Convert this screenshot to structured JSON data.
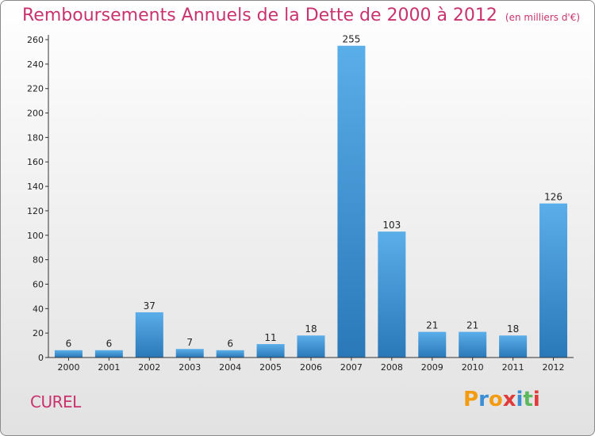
{
  "header": {
    "title": "Remboursements Annuels de la Dette de 2000 à 2012",
    "subtitle": "(en milliers d'€)"
  },
  "footer": {
    "commune": "CUREL",
    "logo_letters": [
      "P",
      "r",
      "o",
      "x",
      "i",
      "t",
      "i"
    ],
    "logo_colors": [
      "#f39c12",
      "#3a8fd4",
      "#f39c12",
      "#e03a3a",
      "#3a8fd4",
      "#5cb85c",
      "#e03a3a"
    ]
  },
  "chart_data": {
    "type": "bar",
    "title": "Remboursements Annuels de la Dette de 2000 à 2012",
    "categories": [
      "2000",
      "2001",
      "2002",
      "2003",
      "2004",
      "2005",
      "2006",
      "2007",
      "2008",
      "2009",
      "2010",
      "2011",
      "2012"
    ],
    "values": [
      6,
      6,
      37,
      7,
      6,
      11,
      18,
      255,
      103,
      21,
      21,
      18,
      126
    ],
    "ylim": [
      0,
      260
    ],
    "yticks": [
      0,
      20,
      40,
      60,
      80,
      100,
      120,
      140,
      160,
      180,
      200,
      220,
      240,
      260
    ],
    "grid": false,
    "bar_color": "#3a8fd4"
  }
}
